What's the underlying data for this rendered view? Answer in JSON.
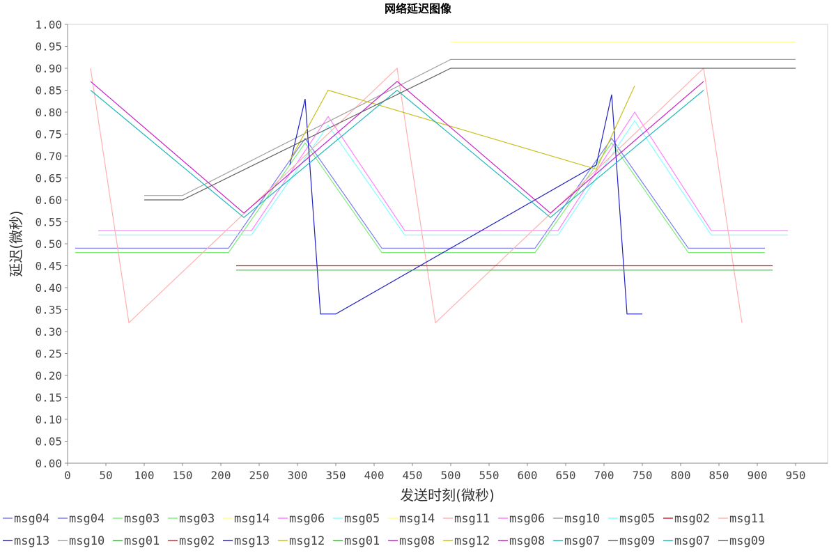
{
  "chart_data": {
    "type": "line",
    "title": "网络延迟图像",
    "xlabel": "发送时刻(微秒)",
    "ylabel": "延迟(微秒)",
    "xlim": [
      0,
      990
    ],
    "ylim": [
      0,
      1.0
    ],
    "x_ticks": [
      "0",
      "50",
      "100",
      "150",
      "200",
      "250",
      "300",
      "350",
      "400",
      "450",
      "500",
      "550",
      "600",
      "650",
      "700",
      "750",
      "800",
      "850",
      "900",
      "950"
    ],
    "y_ticks": [
      "0.00",
      "0.05",
      "0.10",
      "0.15",
      "0.20",
      "0.25",
      "0.30",
      "0.35",
      "0.40",
      "0.45",
      "0.50",
      "0.55",
      "0.60",
      "0.65",
      "0.70",
      "0.75",
      "0.80",
      "0.85",
      "0.90",
      "0.95",
      "1.00"
    ],
    "grid": false,
    "legend_position": "bottom",
    "series": [
      {
        "name": "msg04",
        "color": "#7a7aee",
        "points": [
          [
            10,
            0.49
          ],
          [
            210,
            0.49
          ],
          [
            310,
            0.74
          ],
          [
            410,
            0.49
          ],
          [
            610,
            0.49
          ],
          [
            710,
            0.74
          ],
          [
            810,
            0.49
          ],
          [
            910,
            0.49
          ]
        ]
      },
      {
        "name": "msg04",
        "color": "#7a7aee",
        "points": []
      },
      {
        "name": "msg03",
        "color": "#7cee7c",
        "points": [
          [
            10,
            0.48
          ],
          [
            210,
            0.48
          ],
          [
            310,
            0.73
          ],
          [
            410,
            0.48
          ],
          [
            610,
            0.48
          ],
          [
            710,
            0.73
          ],
          [
            810,
            0.48
          ],
          [
            910,
            0.48
          ]
        ]
      },
      {
        "name": "msg03",
        "color": "#7cee7c",
        "points": []
      },
      {
        "name": "msg14",
        "color": "#ffff80",
        "points": [
          [
            500,
            0.96
          ],
          [
            950,
            0.96
          ]
        ]
      },
      {
        "name": "msg06",
        "color": "#ff80ff",
        "points": [
          [
            40,
            0.53
          ],
          [
            240,
            0.53
          ],
          [
            340,
            0.79
          ],
          [
            440,
            0.53
          ],
          [
            640,
            0.53
          ],
          [
            740,
            0.8
          ],
          [
            840,
            0.53
          ],
          [
            940,
            0.53
          ]
        ]
      },
      {
        "name": "msg05",
        "color": "#80ffff",
        "points": [
          [
            40,
            0.52
          ],
          [
            240,
            0.52
          ],
          [
            340,
            0.77
          ],
          [
            440,
            0.52
          ],
          [
            640,
            0.52
          ],
          [
            740,
            0.78
          ],
          [
            840,
            0.52
          ],
          [
            940,
            0.52
          ]
        ]
      },
      {
        "name": "msg14",
        "color": "#ffff80",
        "points": []
      },
      {
        "name": "msg11",
        "color": "#ffb0b0",
        "points": [
          [
            30,
            0.9
          ],
          [
            80,
            0.32
          ],
          [
            430,
            0.9
          ],
          [
            480,
            0.32
          ],
          [
            830,
            0.9
          ],
          [
            880,
            0.32
          ]
        ]
      },
      {
        "name": "msg06",
        "color": "#ff80ff",
        "points": []
      },
      {
        "name": "msg10",
        "color": "#a0a0a0",
        "points": [
          [
            100,
            0.61
          ],
          [
            150,
            0.61
          ],
          [
            500,
            0.92
          ],
          [
            950,
            0.92
          ]
        ]
      },
      {
        "name": "msg05",
        "color": "#80ffff",
        "points": []
      },
      {
        "name": "msg02",
        "color": "#c03030",
        "points": [
          [
            220,
            0.45
          ],
          [
            920,
            0.45
          ]
        ]
      },
      {
        "name": "msg11",
        "color": "#ffb0b0",
        "points": []
      },
      {
        "name": "msg13",
        "color": "#2020c0",
        "points": [
          [
            290,
            0.68
          ],
          [
            310,
            0.83
          ],
          [
            330,
            0.34
          ],
          [
            350,
            0.34
          ],
          [
            690,
            0.68
          ],
          [
            710,
            0.84
          ],
          [
            730,
            0.34
          ],
          [
            750,
            0.34
          ]
        ]
      },
      {
        "name": "msg10",
        "color": "#a0a0a0",
        "points": []
      },
      {
        "name": "msg01",
        "color": "#30c030",
        "points": [
          [
            220,
            0.44
          ],
          [
            920,
            0.44
          ]
        ]
      },
      {
        "name": "msg02",
        "color": "#c03030",
        "points": []
      },
      {
        "name": "msg13",
        "color": "#2020c0",
        "points": []
      },
      {
        "name": "msg12",
        "color": "#c8c020",
        "points": [
          [
            290,
            0.69
          ],
          [
            340,
            0.85
          ],
          [
            690,
            0.67
          ],
          [
            740,
            0.86
          ]
        ]
      },
      {
        "name": "msg01",
        "color": "#30c030",
        "points": []
      },
      {
        "name": "msg08",
        "color": "#c820c8",
        "points": [
          [
            30,
            0.87
          ],
          [
            230,
            0.57
          ],
          [
            430,
            0.87
          ],
          [
            630,
            0.57
          ],
          [
            830,
            0.87
          ]
        ]
      },
      {
        "name": "msg12",
        "color": "#c8c020",
        "points": []
      },
      {
        "name": "msg08",
        "color": "#c820c8",
        "points": []
      },
      {
        "name": "msg07",
        "color": "#20b8b8",
        "points": [
          [
            30,
            0.85
          ],
          [
            230,
            0.56
          ],
          [
            430,
            0.85
          ],
          [
            630,
            0.56
          ],
          [
            830,
            0.85
          ]
        ]
      },
      {
        "name": "msg09",
        "color": "#606060",
        "points": [
          [
            100,
            0.6
          ],
          [
            150,
            0.6
          ],
          [
            500,
            0.9
          ],
          [
            950,
            0.9
          ]
        ]
      },
      {
        "name": "msg07",
        "color": "#20b8b8",
        "points": []
      },
      {
        "name": "msg09",
        "color": "#606060",
        "points": []
      }
    ]
  }
}
